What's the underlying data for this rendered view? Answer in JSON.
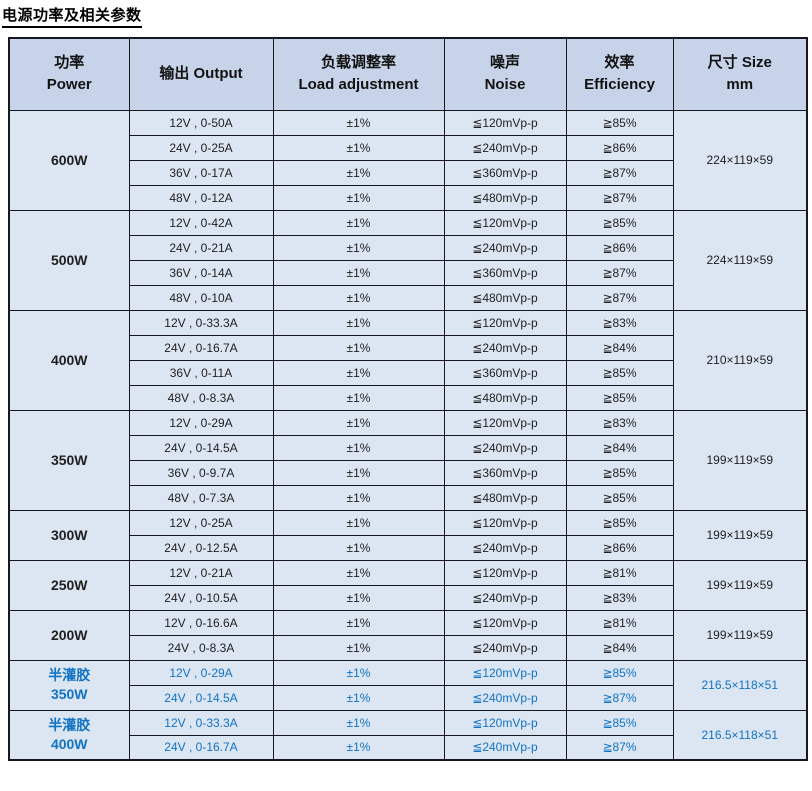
{
  "title": "电源功率及相关参数",
  "colors": {
    "header_bg": "#c7d3e8",
    "row_bg": "#dce5f2",
    "border": "#17171f",
    "text": "#1f1f1f",
    "blue_text": "#1173c4"
  },
  "table": {
    "headers": [
      {
        "lines": [
          "功率",
          "Power"
        ]
      },
      {
        "lines": [
          "输出 Output"
        ]
      },
      {
        "lines": [
          "负载调整率",
          "Load adjustment"
        ]
      },
      {
        "lines": [
          "噪声",
          "Noise"
        ]
      },
      {
        "lines": [
          "效率",
          "Efficiency"
        ]
      },
      {
        "lines": [
          "尺寸 Size",
          "mm"
        ]
      }
    ],
    "groups": [
      {
        "power_lines": [
          "600W"
        ],
        "size": "224×119×59",
        "highlight": false,
        "rows": [
          {
            "output": "12V , 0-50A",
            "load": "±1%",
            "noise": "≦120mVp-p",
            "efficiency": "≧85%"
          },
          {
            "output": "24V , 0-25A",
            "load": "±1%",
            "noise": "≦240mVp-p",
            "efficiency": "≧86%"
          },
          {
            "output": "36V , 0-17A",
            "load": "±1%",
            "noise": "≦360mVp-p",
            "efficiency": "≧87%"
          },
          {
            "output": "48V , 0-12A",
            "load": "±1%",
            "noise": "≦480mVp-p",
            "efficiency": "≧87%"
          }
        ]
      },
      {
        "power_lines": [
          "500W"
        ],
        "size": "224×119×59",
        "highlight": false,
        "rows": [
          {
            "output": "12V , 0-42A",
            "load": "±1%",
            "noise": "≦120mVp-p",
            "efficiency": "≧85%"
          },
          {
            "output": "24V , 0-21A",
            "load": "±1%",
            "noise": "≦240mVp-p",
            "efficiency": "≧86%"
          },
          {
            "output": "36V , 0-14A",
            "load": "±1%",
            "noise": "≦360mVp-p",
            "efficiency": "≧87%"
          },
          {
            "output": "48V , 0-10A",
            "load": "±1%",
            "noise": "≦480mVp-p",
            "efficiency": "≧87%"
          }
        ]
      },
      {
        "power_lines": [
          "400W"
        ],
        "size": "210×119×59",
        "highlight": false,
        "rows": [
          {
            "output": "12V , 0-33.3A",
            "load": "±1%",
            "noise": "≦120mVp-p",
            "efficiency": "≧83%"
          },
          {
            "output": "24V , 0-16.7A",
            "load": "±1%",
            "noise": "≦240mVp-p",
            "efficiency": "≧84%"
          },
          {
            "output": "36V , 0-11A",
            "load": "±1%",
            "noise": "≦360mVp-p",
            "efficiency": "≧85%"
          },
          {
            "output": "48V , 0-8.3A",
            "load": "±1%",
            "noise": "≦480mVp-p",
            "efficiency": "≧85%"
          }
        ]
      },
      {
        "power_lines": [
          "350W"
        ],
        "size": "199×119×59",
        "highlight": false,
        "rows": [
          {
            "output": "12V , 0-29A",
            "load": "±1%",
            "noise": "≦120mVp-p",
            "efficiency": "≧83%"
          },
          {
            "output": "24V , 0-14.5A",
            "load": "±1%",
            "noise": "≦240mVp-p",
            "efficiency": "≧84%"
          },
          {
            "output": "36V , 0-9.7A",
            "load": "±1%",
            "noise": "≦360mVp-p",
            "efficiency": "≧85%"
          },
          {
            "output": "48V , 0-7.3A",
            "load": "±1%",
            "noise": "≦480mVp-p",
            "efficiency": "≧85%"
          }
        ]
      },
      {
        "power_lines": [
          "300W"
        ],
        "size": "199×119×59",
        "highlight": false,
        "rows": [
          {
            "output": "12V , 0-25A",
            "load": "±1%",
            "noise": "≦120mVp-p",
            "efficiency": "≧85%"
          },
          {
            "output": "24V , 0-12.5A",
            "load": "±1%",
            "noise": "≦240mVp-p",
            "efficiency": "≧86%"
          }
        ]
      },
      {
        "power_lines": [
          "250W"
        ],
        "size": "199×119×59",
        "highlight": false,
        "rows": [
          {
            "output": "12V , 0-21A",
            "load": "±1%",
            "noise": "≦120mVp-p",
            "efficiency": "≧81%"
          },
          {
            "output": "24V , 0-10.5A",
            "load": "±1%",
            "noise": "≦240mVp-p",
            "efficiency": "≧83%"
          }
        ]
      },
      {
        "power_lines": [
          "200W"
        ],
        "size": "199×119×59",
        "highlight": false,
        "rows": [
          {
            "output": "12V , 0-16.6A",
            "load": "±1%",
            "noise": "≦120mVp-p",
            "efficiency": "≧81%"
          },
          {
            "output": "24V , 0-8.3A",
            "load": "±1%",
            "noise": "≦240mVp-p",
            "efficiency": "≧84%"
          }
        ]
      },
      {
        "power_lines": [
          "半灌胶",
          "350W"
        ],
        "size": "216.5×118×51",
        "highlight": true,
        "rows": [
          {
            "output": "12V , 0-29A",
            "load": "±1%",
            "noise": "≦120mVp-p",
            "efficiency": "≧85%"
          },
          {
            "output": "24V , 0-14.5A",
            "load": "±1%",
            "noise": "≦240mVp-p",
            "efficiency": "≧87%"
          }
        ]
      },
      {
        "power_lines": [
          "半灌胶",
          "400W"
        ],
        "size": "216.5×118×51",
        "highlight": true,
        "rows": [
          {
            "output": "12V , 0-33.3A",
            "load": "±1%",
            "noise": "≦120mVp-p",
            "efficiency": "≧85%"
          },
          {
            "output": "24V , 0-16.7A",
            "load": "±1%",
            "noise": "≦240mVp-p",
            "efficiency": "≧87%"
          }
        ]
      }
    ]
  }
}
